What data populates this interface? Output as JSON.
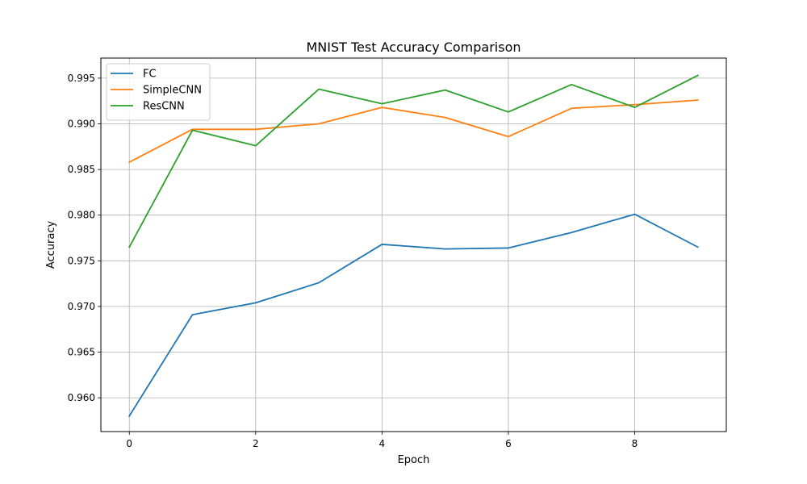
{
  "chart_data": {
    "type": "line",
    "title": "MNIST Test Accuracy Comparison",
    "xlabel": "Epoch",
    "ylabel": "Accuracy",
    "x": [
      0,
      1,
      2,
      3,
      4,
      5,
      6,
      7,
      8,
      9
    ],
    "xlim": [
      -0.45,
      9.45
    ],
    "ylim": [
      0.9563,
      0.9972
    ],
    "xticks": [
      0,
      2,
      4,
      6,
      8
    ],
    "xtick_labels": [
      "0",
      "2",
      "4",
      "6",
      "8"
    ],
    "yticks": [
      0.96,
      0.965,
      0.97,
      0.975,
      0.98,
      0.985,
      0.99,
      0.995
    ],
    "ytick_labels": [
      "0.960",
      "0.965",
      "0.970",
      "0.975",
      "0.980",
      "0.985",
      "0.990",
      "0.995"
    ],
    "grid": true,
    "legend_position": "top-left",
    "series": [
      {
        "name": "FC",
        "color": "#1f77b4",
        "values": [
          0.958,
          0.9691,
          0.9704,
          0.9726,
          0.9768,
          0.9763,
          0.9764,
          0.9781,
          0.9801,
          0.9765
        ]
      },
      {
        "name": "SimpleCNN",
        "color": "#ff7f0e",
        "values": [
          0.9858,
          0.9894,
          0.9894,
          0.99,
          0.9918,
          0.9907,
          0.9886,
          0.9917,
          0.9921,
          0.9926
        ]
      },
      {
        "name": "ResCNN",
        "color": "#2ca02c",
        "values": [
          0.9765,
          0.9893,
          0.9876,
          0.9938,
          0.9922,
          0.9937,
          0.9913,
          0.9943,
          0.9918,
          0.9953
        ]
      }
    ]
  }
}
